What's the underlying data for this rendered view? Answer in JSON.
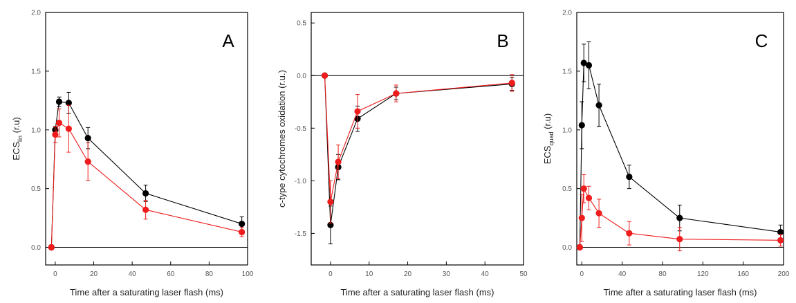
{
  "chart_data": [
    {
      "type": "scatter",
      "panel_label": "A",
      "xlabel": "Time after a saturating laser flash (ms)",
      "ylabel_main": "ECS",
      "ylabel_sub": "lin",
      "ylabel_suffix": " (r.u)",
      "xlim": [
        -5,
        100
      ],
      "ylim": [
        -0.15,
        2.0
      ],
      "xticks": [
        0,
        20,
        40,
        60,
        80,
        100
      ],
      "yticks": [
        0.0,
        0.5,
        1.0,
        1.5,
        2.0
      ],
      "ytick_labels": [
        "0.0",
        "0.5",
        "1.0",
        "1.5",
        "2.0"
      ],
      "xtick_labels": [
        "0",
        "20",
        "40",
        "60",
        "80",
        "100"
      ],
      "zero_line": true,
      "series": [
        {
          "color": "#000000",
          "x": [
            -2,
            0,
            2,
            7,
            17,
            47,
            97
          ],
          "y": [
            0.0,
            1.0,
            1.24,
            1.23,
            0.93,
            0.46,
            0.2
          ],
          "err": [
            0.02,
            0.03,
            0.04,
            0.09,
            0.09,
            0.07,
            0.06
          ]
        },
        {
          "color": "#ee1c1c",
          "x": [
            -2,
            0,
            2,
            7,
            17,
            47,
            97
          ],
          "y": [
            0.0,
            0.96,
            1.06,
            1.01,
            0.73,
            0.32,
            0.13
          ],
          "err": [
            0.02,
            0.07,
            0.12,
            0.2,
            0.16,
            0.08,
            0.04
          ]
        }
      ]
    },
    {
      "type": "scatter",
      "panel_label": "B",
      "xlabel": "Time after a saturating laser flash (ms)",
      "ylabel_main": "c-type cytochromes oxidation (r.u.)",
      "xlim": [
        -5,
        50
      ],
      "ylim": [
        -1.8,
        0.6
      ],
      "xticks": [
        0,
        10,
        20,
        30,
        40,
        50
      ],
      "yticks": [
        -1.5,
        -1.0,
        -0.5,
        0.0,
        0.5
      ],
      "ytick_labels": [
        "-1.5",
        "-1.0",
        "-0.5",
        "0.0",
        "0.5"
      ],
      "xtick_labels": [
        "0",
        "10",
        "20",
        "30",
        "40",
        "50"
      ],
      "zero_line": true,
      "series": [
        {
          "color": "#000000",
          "x": [
            -1.5,
            0,
            2,
            7,
            17,
            47
          ],
          "y": [
            0.0,
            -1.42,
            -0.87,
            -0.41,
            -0.17,
            -0.08
          ],
          "err": [
            0.02,
            0.18,
            0.12,
            0.12,
            0.06,
            0.06
          ]
        },
        {
          "color": "#ee1c1c",
          "x": [
            -1.5,
            0,
            2,
            7,
            17,
            47
          ],
          "y": [
            0.0,
            -1.2,
            -0.82,
            -0.34,
            -0.17,
            -0.07
          ],
          "err": [
            0.02,
            0.2,
            0.16,
            0.16,
            0.08,
            0.08
          ]
        }
      ]
    },
    {
      "type": "scatter",
      "panel_label": "C",
      "xlabel": "Time after a saturating laser flash (ms)",
      "ylabel_main": "ECS",
      "ylabel_sub": "quad",
      "ylabel_suffix": " (r.u)",
      "xlim": [
        -5,
        200
      ],
      "ylim": [
        -0.15,
        2.0
      ],
      "xticks": [
        0,
        40,
        80,
        120,
        160,
        200
      ],
      "yticks": [
        0.0,
        0.5,
        1.0,
        1.5,
        2.0
      ],
      "ytick_labels": [
        "0.0",
        "0.5",
        "1.0",
        "1.5",
        "2.0"
      ],
      "xtick_labels": [
        "0",
        "40",
        "80",
        "120",
        "160",
        "200"
      ],
      "zero_line": true,
      "series": [
        {
          "color": "#000000",
          "x": [
            -2,
            0,
            2,
            7,
            17,
            47,
            97,
            197
          ],
          "y": [
            0.0,
            1.04,
            1.57,
            1.55,
            1.21,
            0.6,
            0.25,
            0.13
          ],
          "err": [
            0.02,
            0.2,
            0.16,
            0.2,
            0.18,
            0.1,
            0.11,
            0.06
          ]
        },
        {
          "color": "#ee1c1c",
          "x": [
            -2,
            0,
            2,
            7,
            17,
            47,
            97,
            197
          ],
          "y": [
            0.0,
            0.25,
            0.5,
            0.42,
            0.29,
            0.12,
            0.07,
            0.06
          ],
          "err": [
            0.02,
            0.2,
            0.12,
            0.1,
            0.12,
            0.1,
            0.1,
            0.05
          ]
        }
      ]
    }
  ]
}
